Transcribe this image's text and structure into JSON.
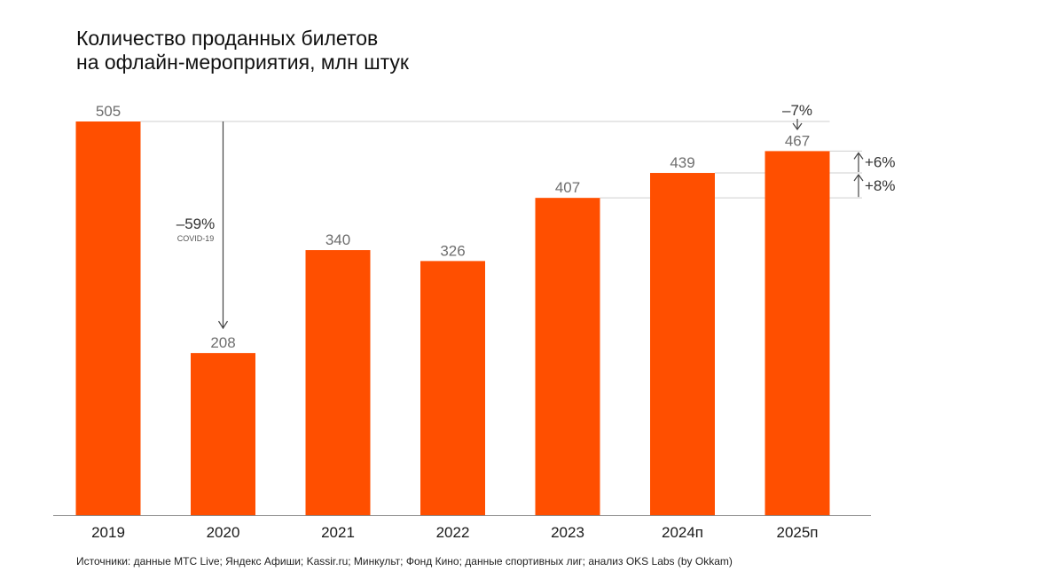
{
  "chart_data": {
    "type": "bar",
    "title_lines": [
      "Количество проданных билетов",
      "на офлайн-мероприятия, млн штук"
    ],
    "categories": [
      "2019",
      "2020",
      "2021",
      "2022",
      "2023",
      "2024п",
      "2025п"
    ],
    "values": [
      505,
      208,
      340,
      326,
      407,
      439,
      467
    ],
    "value_labels": [
      "505",
      "208",
      "340",
      "326",
      "407",
      "439",
      "467"
    ],
    "ylim": [
      0,
      505
    ],
    "bar_color": "#FF4F00",
    "annotations": {
      "covid_drop": {
        "from": "2019",
        "to": "2020",
        "text": "–59%",
        "subtext": "COVID-19"
      },
      "forecast_drop": {
        "text": "–7%",
        "target": "2025п"
      },
      "growth": [
        {
          "from": "2024п",
          "to": "2025п",
          "text": "+6%"
        },
        {
          "from": "2023",
          "to": "2024п",
          "text": "+8%"
        }
      ]
    }
  },
  "footer": {
    "sources": "Источники: данные МТС Live; Яндекс Афиши; Kassir.ru; Минкульт; Фонд Кино; данные спортивных лиг; анализ OKS Labs (by Okkam)"
  }
}
